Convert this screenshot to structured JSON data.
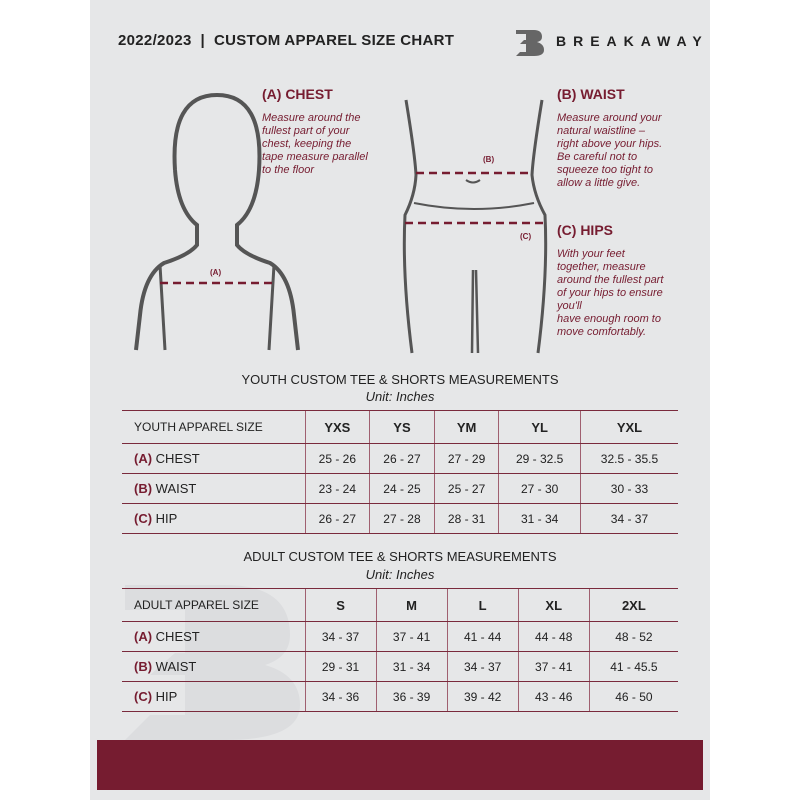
{
  "header": {
    "title": "2022/2023  |  CUSTOM APPAREL SIZE CHART",
    "brand": "BREAKAWAY",
    "logo_letter": "B"
  },
  "guides": {
    "chest": {
      "heading": "(A) CHEST",
      "text": [
        "Measure around the",
        "fullest part of your",
        "chest, keeping the",
        "tape measure parallel",
        "to the floor"
      ],
      "tag": "(A)"
    },
    "waist": {
      "heading": "(B) WAIST",
      "text": [
        "Measure around your",
        "natural waistline –",
        "right above your hips.",
        "Be careful not to",
        "squeeze too tight to",
        "allow a little give."
      ],
      "tag": "(B)"
    },
    "hips": {
      "heading": "(C) HIPS",
      "text": [
        "With your feet",
        "together, measure",
        "around the fullest part",
        "of your hips to ensure",
        "you'll",
        "have enough room to",
        "move comfortably."
      ],
      "tag": "(C)"
    }
  },
  "youth": {
    "title": "YOUTH CUSTOM TEE & SHORTS MEASUREMENTS",
    "unit": "Unit: Inches",
    "header_label": "YOUTH APPAREL SIZE",
    "sizes": [
      "YXS",
      "YS",
      "YM",
      "YL",
      "YXL"
    ],
    "rows": [
      {
        "code": "(A)",
        "label": "CHEST",
        "values": [
          "25 - 26",
          "26 - 27",
          "27 - 29",
          "29 - 32.5",
          "32.5 - 35.5"
        ]
      },
      {
        "code": "(B)",
        "label": "WAIST",
        "values": [
          "23 - 24",
          "24 - 25",
          "25 - 27",
          "27 - 30",
          "30 - 33"
        ]
      },
      {
        "code": "(C)",
        "label": "HIP",
        "values": [
          "26 - 27",
          "27 - 28",
          "28 - 31",
          "31 - 34",
          "34 - 37"
        ]
      }
    ]
  },
  "adult": {
    "title": "ADULT CUSTOM TEE & SHORTS MEASUREMENTS",
    "unit": "Unit: Inches",
    "header_label": "ADULT APPAREL SIZE",
    "sizes": [
      "S",
      "M",
      "L",
      "XL",
      "2XL"
    ],
    "rows": [
      {
        "code": "(A)",
        "label": "CHEST",
        "values": [
          "34 - 37",
          "37 - 41",
          "41 - 44",
          "44 - 48",
          "48 - 52"
        ]
      },
      {
        "code": "(B)",
        "label": "WAIST",
        "values": [
          "29 - 31",
          "31 - 34",
          "34 - 37",
          "37 - 41",
          "41 - 45.5"
        ]
      },
      {
        "code": "(C)",
        "label": "HIP",
        "values": [
          "34 - 36",
          "36 - 39",
          "39 - 42",
          "43 - 46",
          "46 - 50"
        ]
      }
    ]
  },
  "colors": {
    "accent": "#761c30",
    "background": "#e6e7e8"
  }
}
